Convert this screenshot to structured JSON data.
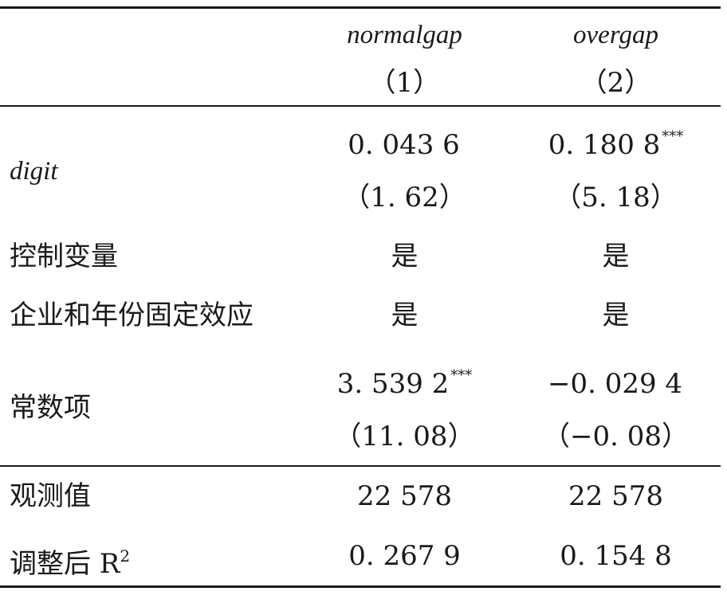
{
  "table": {
    "header": {
      "col1_name": "normalgap",
      "col2_name": "overgap",
      "col1_num": "（1）",
      "col2_num": "（2）"
    },
    "rows": {
      "digit": {
        "label": "digit",
        "col1_coef": "0. 043 6",
        "col1_stars": "",
        "col2_coef": "0. 180 8",
        "col2_stars": "***",
        "col1_t": "（1. 62）",
        "col2_t": "（5. 18）"
      },
      "controls": {
        "label": "控制变量",
        "col1": "是",
        "col2": "是"
      },
      "fixed_effects": {
        "label": "企业和年份固定效应",
        "col1": "是",
        "col2": "是"
      },
      "constant": {
        "label": "常数项",
        "col1_coef": "3. 539 2",
        "col1_stars": "***",
        "col2_coef": "−0. 029 4",
        "col2_stars": "",
        "col1_t": "（11. 08）",
        "col2_t": "（−0. 08）"
      },
      "observations": {
        "label": "观测值",
        "col1": "22 578",
        "col2": "22 578"
      },
      "adj_r2": {
        "label": "调整后 R",
        "label_sup": "2",
        "col1": "0. 267 9",
        "col2": "0. 154 8"
      }
    }
  }
}
